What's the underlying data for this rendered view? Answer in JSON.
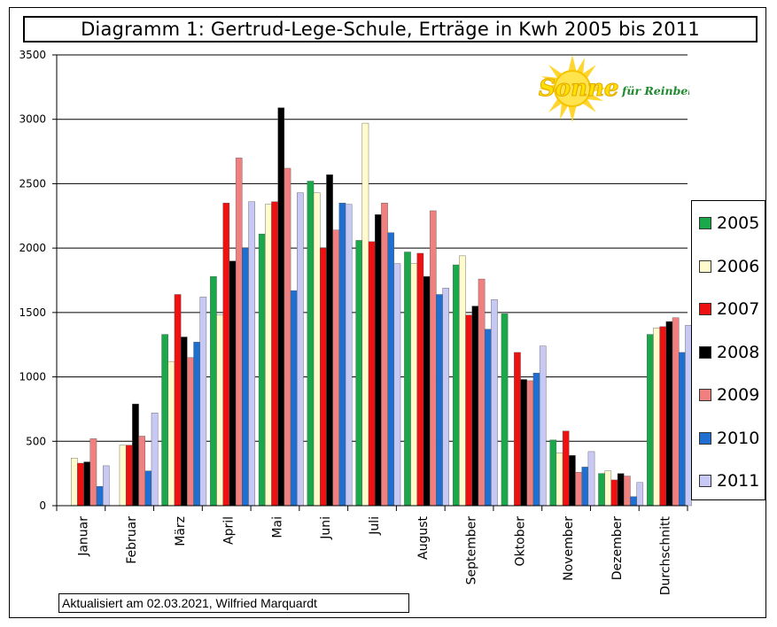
{
  "title": "Diagramm 1: Gertrud-Lege-Schule, Erträge in Kwh 2005 bis 2011",
  "footer": "Aktualisiert am 02.03.2021, Wilfried Marquardt",
  "logo": {
    "word": "Sonne",
    "text": "für Reinbek w.V."
  },
  "chart_data": {
    "type": "bar",
    "categories": [
      "Januar",
      "Februar",
      "März",
      "April",
      "Mai",
      "Juni",
      "Juli",
      "August",
      "September",
      "Oktober",
      "November",
      "Dezember",
      "Durchschnitt"
    ],
    "ylim": [
      0,
      3500
    ],
    "yticks": [
      "0",
      "500",
      "1000",
      "1500",
      "2000",
      "2500",
      "3000",
      "3500"
    ],
    "grid": true,
    "legend_position": "right",
    "series": [
      {
        "name": "2005",
        "color": "#1aa84a",
        "values": [
          0,
          0,
          1330,
          1780,
          2110,
          2520,
          2060,
          1970,
          1870,
          1490,
          510,
          250,
          1330
        ]
      },
      {
        "name": "2006",
        "color": "#fffbcc",
        "values": [
          370,
          470,
          1120,
          1480,
          2340,
          2430,
          2970,
          1880,
          1940,
          0,
          410,
          270,
          1380
        ]
      },
      {
        "name": "2007",
        "color": "#ee1111",
        "values": [
          330,
          470,
          1640,
          2350,
          2360,
          2000,
          2050,
          1960,
          1480,
          1190,
          580,
          200,
          1390
        ]
      },
      {
        "name": "2008",
        "color": "#000000",
        "values": [
          340,
          790,
          1310,
          1900,
          3090,
          2570,
          2260,
          1780,
          1550,
          980,
          390,
          250,
          1430
        ]
      },
      {
        "name": "2009",
        "color": "#f08080",
        "values": [
          520,
          540,
          1150,
          2700,
          2620,
          2140,
          2350,
          2290,
          1760,
          970,
          260,
          230,
          1460
        ]
      },
      {
        "name": "2010",
        "color": "#1f6fd1",
        "values": [
          150,
          270,
          1270,
          2000,
          1670,
          2350,
          2120,
          1640,
          1370,
          1030,
          300,
          70,
          1190
        ]
      },
      {
        "name": "2011",
        "color": "#c8c8f5",
        "values": [
          310,
          720,
          1620,
          2360,
          2430,
          2340,
          1880,
          1690,
          1600,
          1240,
          420,
          180,
          1400
        ]
      }
    ]
  }
}
